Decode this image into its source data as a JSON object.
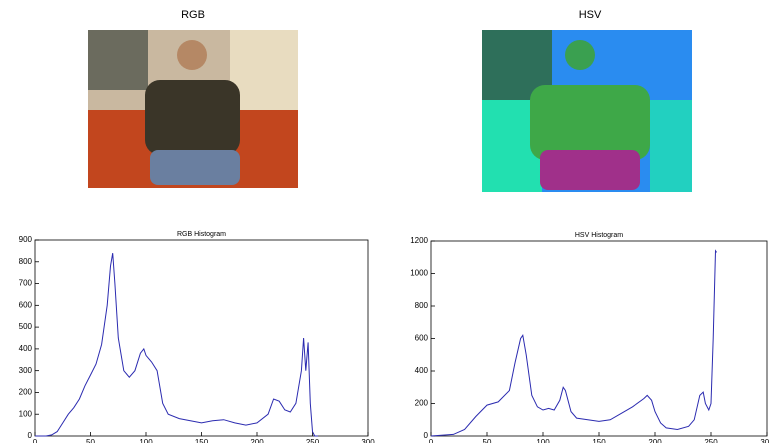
{
  "images": [
    {
      "title": "RGB"
    },
    {
      "title": "HSV"
    }
  ],
  "chart_data": [
    {
      "type": "line",
      "title": "RGB Histogram",
      "color": "#2b2bb0",
      "x": [
        0,
        5,
        10,
        15,
        20,
        25,
        30,
        35,
        40,
        45,
        50,
        55,
        60,
        65,
        68,
        70,
        72,
        75,
        80,
        85,
        90,
        95,
        98,
        100,
        105,
        110,
        115,
        120,
        130,
        140,
        150,
        160,
        170,
        180,
        190,
        200,
        210,
        215,
        220,
        225,
        230,
        235,
        240,
        242,
        244,
        246,
        248,
        250,
        252,
        255
      ],
      "values": [
        0,
        0,
        0,
        5,
        20,
        60,
        100,
        130,
        170,
        230,
        280,
        330,
        420,
        600,
        780,
        840,
        700,
        450,
        300,
        270,
        300,
        380,
        400,
        370,
        340,
        300,
        150,
        100,
        80,
        70,
        60,
        70,
        75,
        60,
        50,
        60,
        100,
        170,
        160,
        120,
        110,
        150,
        300,
        450,
        300,
        430,
        150,
        20,
        0,
        0
      ],
      "xlim": [
        0,
        300
      ],
      "xticks": [
        0,
        50,
        100,
        150,
        200,
        250,
        300
      ],
      "ylim": [
        0,
        900
      ],
      "yticks": [
        0,
        100,
        200,
        300,
        400,
        500,
        600,
        700,
        800,
        900
      ]
    },
    {
      "type": "line",
      "title": "HSV Histogram",
      "color": "#2b2bb0",
      "x": [
        0,
        20,
        30,
        40,
        50,
        60,
        70,
        75,
        80,
        82,
        85,
        90,
        95,
        100,
        105,
        110,
        115,
        118,
        120,
        125,
        130,
        140,
        150,
        160,
        170,
        180,
        190,
        193,
        197,
        200,
        205,
        210,
        220,
        230,
        235,
        240,
        243,
        245,
        248,
        250,
        252,
        254,
        255
      ],
      "values": [
        0,
        10,
        40,
        120,
        190,
        210,
        280,
        450,
        600,
        620,
        500,
        250,
        180,
        160,
        170,
        160,
        220,
        300,
        280,
        150,
        110,
        100,
        90,
        100,
        140,
        180,
        230,
        250,
        220,
        150,
        80,
        50,
        40,
        60,
        100,
        250,
        270,
        200,
        160,
        200,
        600,
        1140,
        1130
      ],
      "xlim": [
        0,
        300
      ],
      "xticks": [
        0,
        50,
        100,
        150,
        200,
        250,
        300
      ],
      "ylim": [
        0,
        1200
      ],
      "yticks": [
        0,
        200,
        400,
        600,
        800,
        1000,
        1200
      ]
    }
  ]
}
